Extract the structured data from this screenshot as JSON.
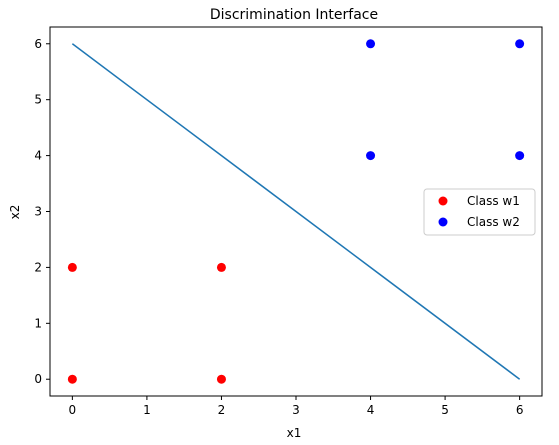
{
  "chart_data": {
    "type": "scatter",
    "title": "Discrimination Interface",
    "xlabel": "x1",
    "ylabel": "x2",
    "xlim": [
      -0.3,
      6.3
    ],
    "ylim": [
      -0.3,
      6.3
    ],
    "xticks": [
      0,
      1,
      2,
      3,
      4,
      5,
      6
    ],
    "yticks": [
      0,
      1,
      2,
      3,
      4,
      5,
      6
    ],
    "grid": false,
    "legend_position": "center-right",
    "series": [
      {
        "name": "Class w1",
        "type": "scatter",
        "color": "#ff0000",
        "points": [
          [
            0,
            0
          ],
          [
            0,
            2
          ],
          [
            2,
            0
          ],
          [
            2,
            2
          ]
        ]
      },
      {
        "name": "Class w2",
        "type": "scatter",
        "color": "#0000ff",
        "points": [
          [
            4,
            4
          ],
          [
            4,
            6
          ],
          [
            6,
            4
          ],
          [
            6,
            6
          ]
        ]
      }
    ],
    "lines": [
      {
        "type": "line",
        "color": "#1f77b4",
        "points": [
          [
            0,
            6
          ],
          [
            6,
            0
          ]
        ]
      }
    ]
  }
}
